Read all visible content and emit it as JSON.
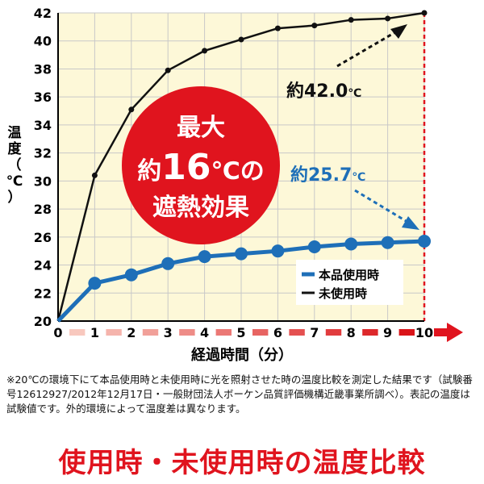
{
  "chart_data": {
    "type": "line",
    "x": [
      0,
      1,
      2,
      3,
      4,
      5,
      6,
      7,
      8,
      9,
      10
    ],
    "xlim": [
      0,
      10
    ],
    "ylim": [
      20,
      42
    ],
    "x_ticks": [
      "0",
      "1",
      "2",
      "3",
      "4",
      "5",
      "6",
      "7",
      "8",
      "9",
      "10"
    ],
    "y_ticks": [
      "20",
      "22",
      "24",
      "26",
      "28",
      "30",
      "32",
      "34",
      "36",
      "38",
      "40",
      "42"
    ],
    "ylabel": "温度（℃）",
    "xlabel": "経過時間（分）",
    "grid": true,
    "legend_position": "bottom-right",
    "series": [
      {
        "name": "本品使用時",
        "color": "#1e6fb8",
        "values": [
          20.0,
          22.7,
          23.3,
          24.1,
          24.6,
          24.8,
          25.0,
          25.3,
          25.5,
          25.6,
          25.7
        ]
      },
      {
        "name": "未使用時",
        "color": "#111111",
        "values": [
          20.0,
          30.4,
          35.1,
          37.9,
          39.3,
          40.1,
          40.9,
          41.1,
          41.5,
          41.6,
          42.0
        ]
      }
    ],
    "annotations": {
      "black_value": "約42.0",
      "blue_value": "約25.7",
      "unit": "℃",
      "badge_line1": "最大",
      "badge_line2_prefix": "約",
      "badge_line2_number": "16",
      "badge_line2_suffix": "℃の",
      "badge_line3": "遮熱効果"
    },
    "colors": {
      "plot_bg": "#fdf8d8",
      "grid": "#c8c8c8",
      "badge": "#e0141e",
      "ref_line": "#e0141e",
      "blue_arrow": "#1e6fb8"
    }
  },
  "footnote": "※20℃の環境下にて本品使用時と未使用時に光を照射させた時の温度比較を測定した結果です（試験番号12612927/2012年12月17日・一般財団法人ボーケン品質評価機構近畿事業所調べ）。表記の温度は試験値です。外的環境によって温度差は異なります。",
  "bottom_title": "使用時・未使用時の温度比較"
}
